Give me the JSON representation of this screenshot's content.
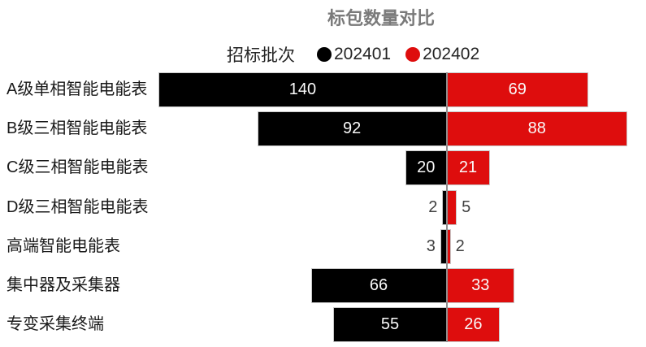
{
  "title": "标包数量对比",
  "legend": {
    "title": "招标批次",
    "items": [
      {
        "label": "202401",
        "color": "#000000"
      },
      {
        "label": "202402",
        "color": "#de0d0d"
      }
    ]
  },
  "chart_data": {
    "type": "bar",
    "subtype": "diverging-horizontal-tornado",
    "title": "标包数量对比",
    "legend_title": "招标批次",
    "legend_position": "top",
    "orientation": "horizontal",
    "categories": [
      "A级单相智能电能表",
      "B级三相智能电能表",
      "C级三相智能电能表",
      "D级三相智能电能表",
      "高端智能电能表",
      "集中器及采集器",
      "专变采集终端"
    ],
    "series": [
      {
        "name": "202401",
        "side": "left",
        "color": "#000000",
        "values": [
          140,
          92,
          20,
          2,
          3,
          66,
          55
        ]
      },
      {
        "name": "202402",
        "side": "right",
        "color": "#de0d0d",
        "values": [
          69,
          88,
          21,
          5,
          2,
          33,
          26
        ]
      }
    ],
    "axis": {
      "center_line": true,
      "gridlines": false,
      "value_axis_visible": false
    },
    "value_labels": "inside bar in white when bar is wide enough, otherwise outside in dark gray"
  },
  "colors": {
    "series_202401": "#000000",
    "series_202402": "#de0d0d",
    "title_text": "#7a7a7a",
    "category_text": "#1a1a1a",
    "legend_text": "#252525",
    "value_label_inside": "#fafafa",
    "value_label_outside": "#3f3f3f",
    "axis_line": "#8f8f8f",
    "bar_border": "#c9c9c9",
    "background": "#ffffff"
  }
}
